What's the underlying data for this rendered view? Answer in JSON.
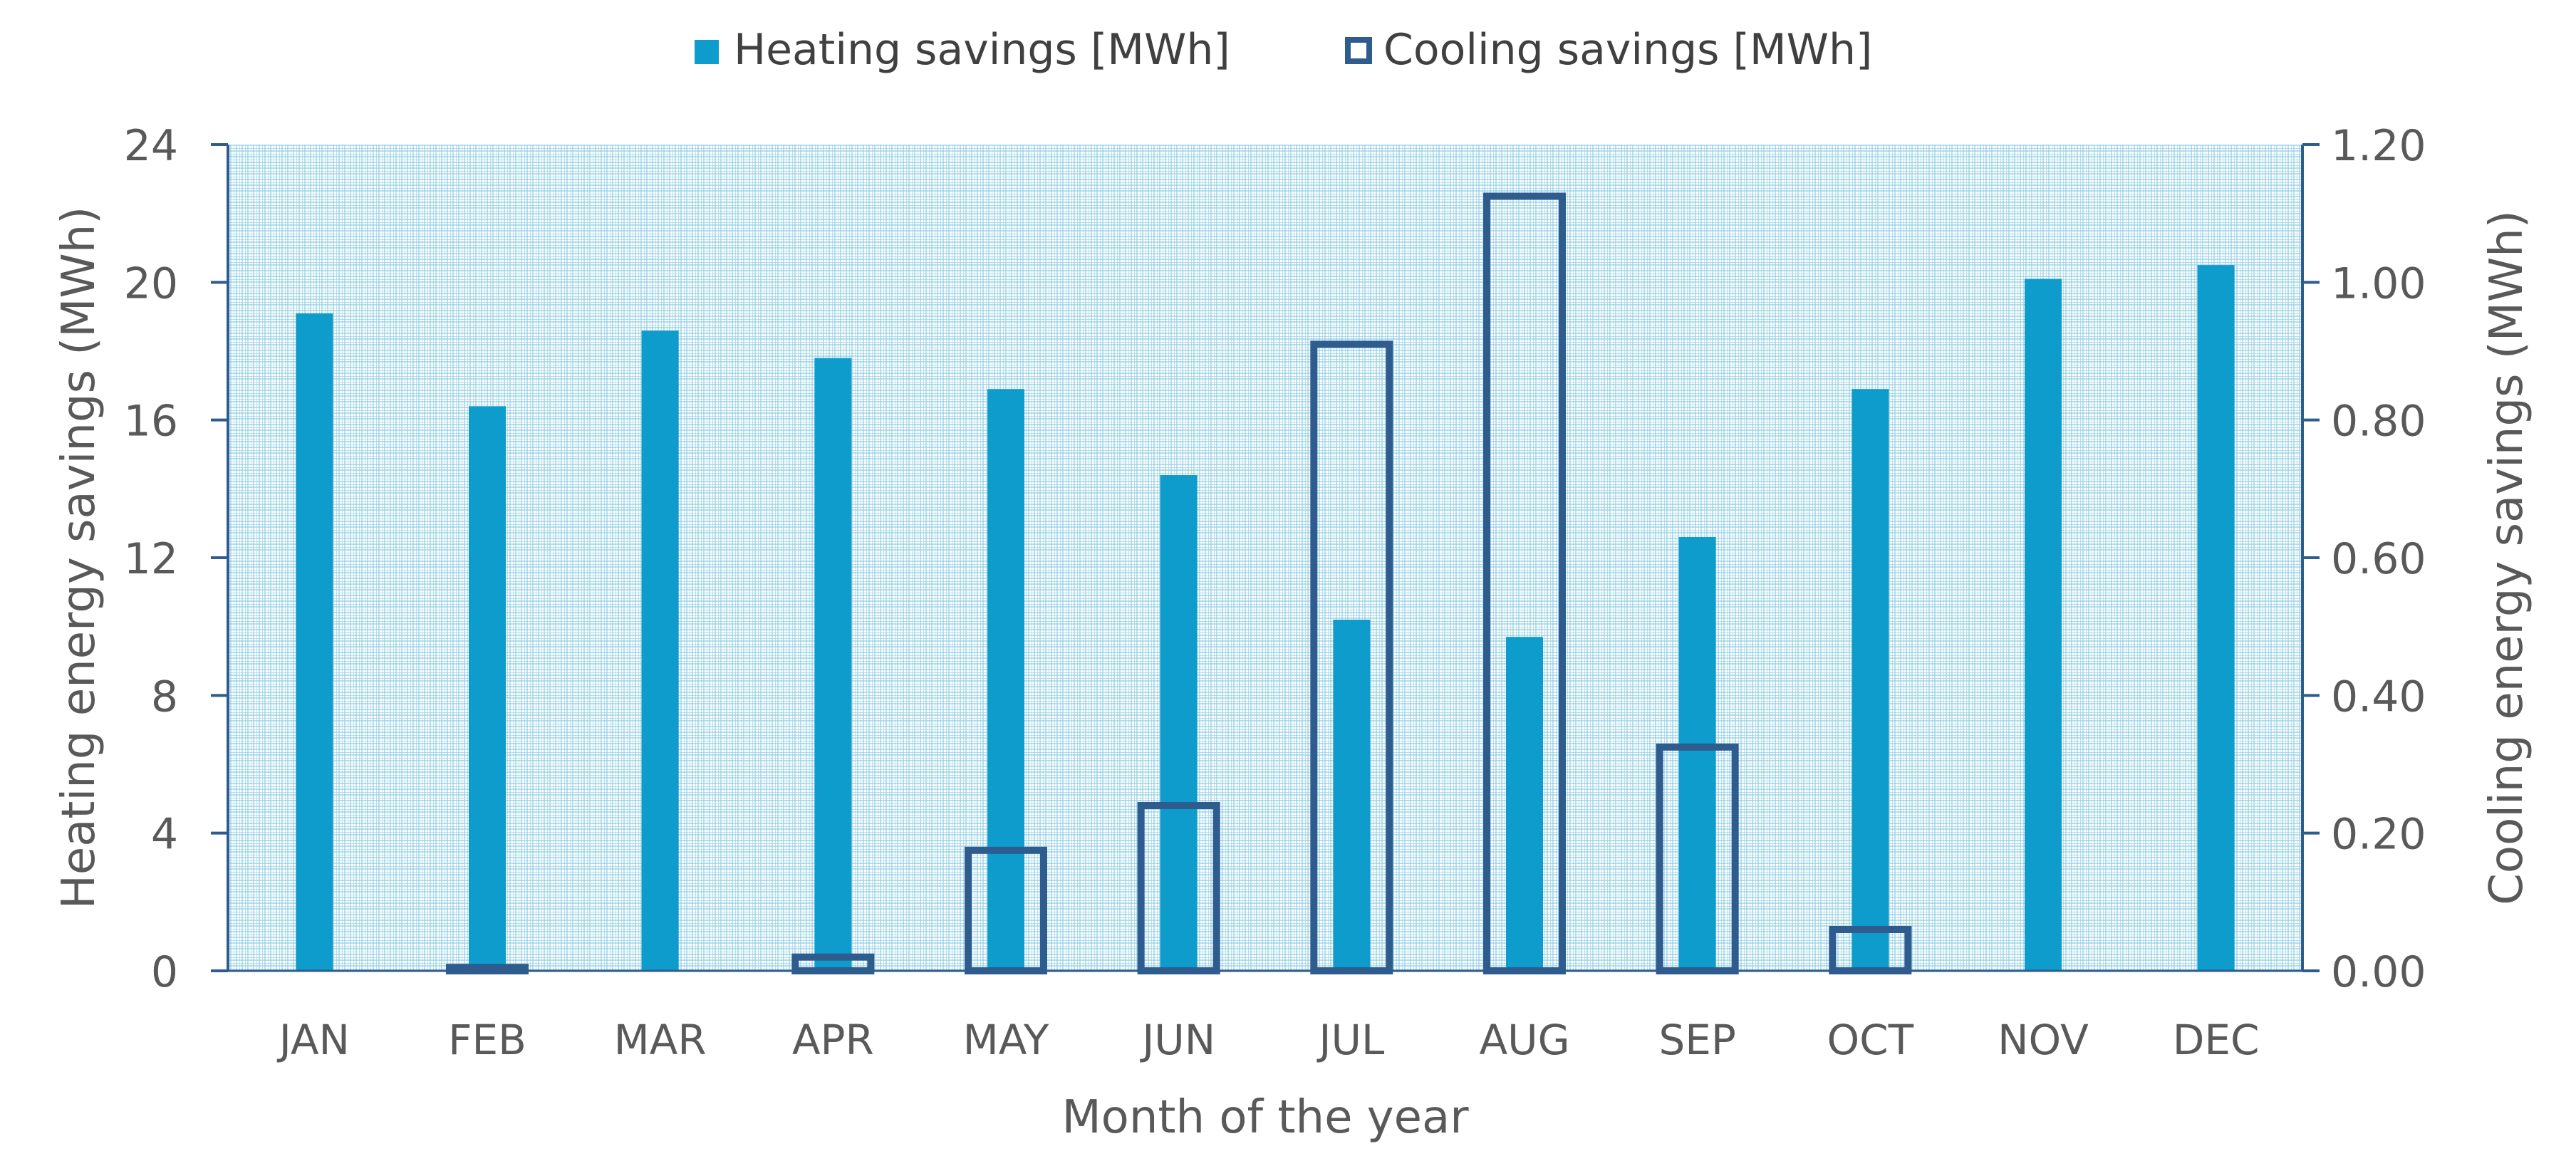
{
  "legend": {
    "heating_label": "Heating savings [MWh]",
    "cooling_label": "Cooling savings [MWh]"
  },
  "chart_data": {
    "type": "bar",
    "categories": [
      "JAN",
      "FEB",
      "MAR",
      "APR",
      "MAY",
      "JUN",
      "JUL",
      "AUG",
      "SEP",
      "OCT",
      "NOV",
      "DEC"
    ],
    "series": [
      {
        "name": "Heating savings [MWh]",
        "axis": "left",
        "style": "filled",
        "values": [
          19.1,
          16.4,
          18.6,
          17.8,
          16.9,
          14.4,
          10.2,
          9.7,
          12.6,
          16.9,
          20.1,
          20.5
        ]
      },
      {
        "name": "Cooling savings [MWh]",
        "axis": "right",
        "style": "outline",
        "values": [
          0.0,
          0.005,
          0.0,
          0.02,
          0.175,
          0.24,
          0.91,
          1.125,
          0.325,
          0.06,
          0.0,
          0.0
        ]
      }
    ],
    "xlabel": "Month of the year",
    "ylabel": "Heating energy savings (MWh)",
    "y2label": "Cooling energy savings (MWh)",
    "ylim": [
      0,
      24
    ],
    "y2lim": [
      0,
      1.2
    ],
    "yticks": [
      "0",
      "4",
      "8",
      "12",
      "16",
      "20",
      "24"
    ],
    "y2ticks": [
      "0.00",
      "0.20",
      "0.40",
      "0.60",
      "0.80",
      "1.00",
      "1.20"
    ],
    "colors": {
      "heating": "#0E9CCC",
      "cooling": "#2E5C8E",
      "axis": "#2E5C8E",
      "plot_pattern": "#8ECDE3"
    },
    "legend_position": "top-center",
    "plot_background": "dotted grid pattern"
  }
}
